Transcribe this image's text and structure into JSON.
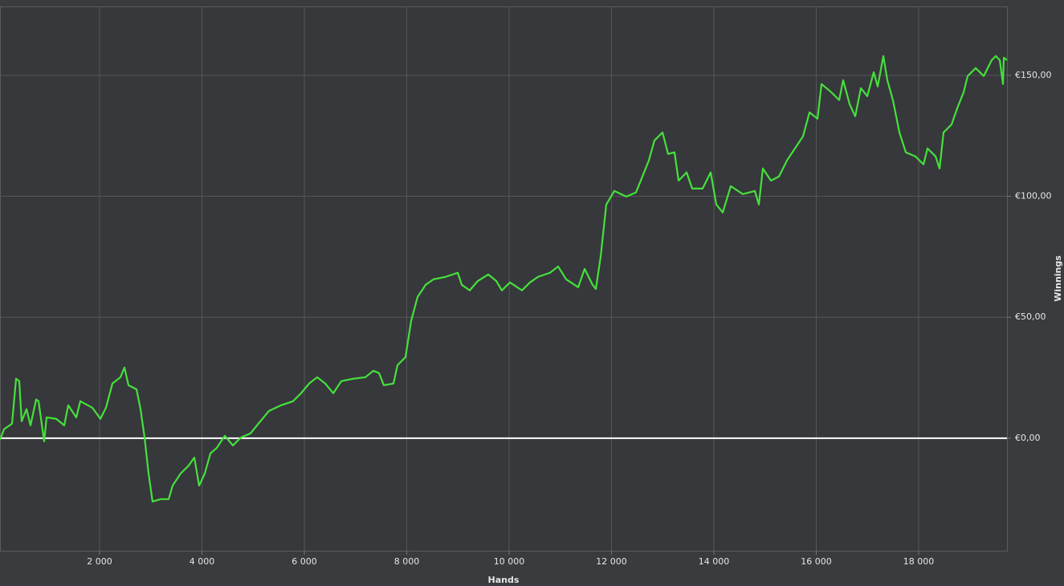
{
  "chart_data": {
    "type": "line",
    "x_label": "Hands",
    "y_label": "Winnings",
    "y_axis_side": "right",
    "grid": true,
    "zero_line": true,
    "xlim": [
      55,
      19725
    ],
    "ylim": [
      -46.5,
      178.5
    ],
    "xticks": [
      {
        "value": 2000,
        "label": "2 000"
      },
      {
        "value": 4000,
        "label": "4 000"
      },
      {
        "value": 6000,
        "label": "6 000"
      },
      {
        "value": 8000,
        "label": "8 000"
      },
      {
        "value": 10000,
        "label": "10 000"
      },
      {
        "value": 12000,
        "label": "12 000"
      },
      {
        "value": 14000,
        "label": "14 000"
      },
      {
        "value": 16000,
        "label": "16 000"
      },
      {
        "value": 18000,
        "label": "18 000"
      }
    ],
    "yticks": [
      {
        "value": 0,
        "label": "€0,00"
      },
      {
        "value": 50,
        "label": "€50,00"
      },
      {
        "value": 100,
        "label": "€100,00"
      },
      {
        "value": 150,
        "label": "€150,00"
      }
    ],
    "x": [
      55,
      133,
      290,
      369,
      431,
      478,
      573,
      651,
      761,
      808,
      918,
      965,
      1153,
      1310,
      1388,
      1545,
      1624,
      1859,
      2016,
      2125,
      2251,
      2408,
      2486,
      2565,
      2722,
      2800,
      2879,
      2957,
      3035,
      3192,
      3349,
      3427,
      3584,
      3741,
      3851,
      3945,
      4055,
      4165,
      4290,
      4447,
      4604,
      4761,
      4949,
      5075,
      5310,
      5545,
      5780,
      5937,
      6094,
      6251,
      6408,
      6565,
      6722,
      6957,
      7192,
      7349,
      7459,
      7553,
      7741,
      7820,
      7976,
      8086,
      8212,
      8369,
      8525,
      8761,
      8996,
      9075,
      9231,
      9388,
      9592,
      9749,
      9859,
      10016,
      10251,
      10408,
      10565,
      10800,
      10957,
      11114,
      11349,
      11475,
      11631,
      11694,
      11788,
      11898,
      12055,
      12290,
      12478,
      12604,
      12729,
      12839,
      12996,
      13106,
      13231,
      13310,
      13467,
      13576,
      13780,
      13937,
      14047,
      14173,
      14329,
      14565,
      14800,
      14878,
      14957,
      15114,
      15271,
      15427,
      15584,
      15741,
      15867,
      16024,
      16102,
      16290,
      16447,
      16525,
      16651,
      16761,
      16871,
      16996,
      17122,
      17200,
      17310,
      17388,
      17498,
      17624,
      17749,
      17937,
      18094,
      18173,
      18330,
      18408,
      18486,
      18643,
      18753,
      18878,
      18957,
      19114,
      19271,
      19427,
      19506,
      19584,
      19647,
      19663,
      19725
    ],
    "series": [
      {
        "color": "#46e03c",
        "values": [
          -0.7,
          3.7,
          6,
          24.6,
          23.6,
          7,
          12,
          5.3,
          16,
          15.3,
          -1.3,
          8.6,
          8,
          5.3,
          13.6,
          8.6,
          15.3,
          12.6,
          8,
          12.6,
          22.6,
          25.2,
          29.2,
          21.9,
          20.2,
          12,
          0.3,
          -14.6,
          -26.2,
          -25.2,
          -25.2,
          -19.6,
          -14.6,
          -11.3,
          -8,
          -19.6,
          -14.6,
          -6.3,
          -4,
          1,
          -3,
          0.3,
          2,
          5.3,
          11.3,
          13.6,
          15.3,
          18.6,
          22.6,
          25.2,
          22.6,
          18.6,
          23.6,
          24.6,
          25.2,
          27.9,
          26.9,
          21.9,
          22.6,
          30.2,
          33.5,
          48.5,
          58.4,
          63.4,
          65.7,
          66.7,
          68.4,
          63.4,
          61.1,
          65,
          67.7,
          65,
          61.1,
          64.4,
          61.1,
          64.4,
          66.7,
          68.4,
          71,
          65.7,
          62.4,
          70,
          63.4,
          61.7,
          75,
          96.6,
          102.2,
          99.9,
          101.6,
          108.2,
          114.8,
          123.1,
          126.4,
          117.5,
          118.2,
          106.5,
          109.9,
          103.2,
          103.2,
          109.9,
          96.6,
          93.3,
          104.2,
          100.9,
          102.2,
          96.6,
          111.5,
          106.5,
          108.2,
          114.8,
          119.8,
          124.8,
          134.7,
          132.1,
          146.4,
          143.1,
          139.8,
          148,
          138.1,
          133.1,
          144.7,
          141.4,
          151.3,
          145.4,
          158,
          148,
          139.7,
          126.4,
          118.2,
          116.5,
          113.2,
          119.8,
          116.5,
          111.5,
          126.4,
          129.7,
          136.4,
          143,
          149.7,
          153,
          149.7,
          156.3,
          158,
          156.3,
          146.4,
          157.3,
          156.3
        ]
      }
    ]
  }
}
